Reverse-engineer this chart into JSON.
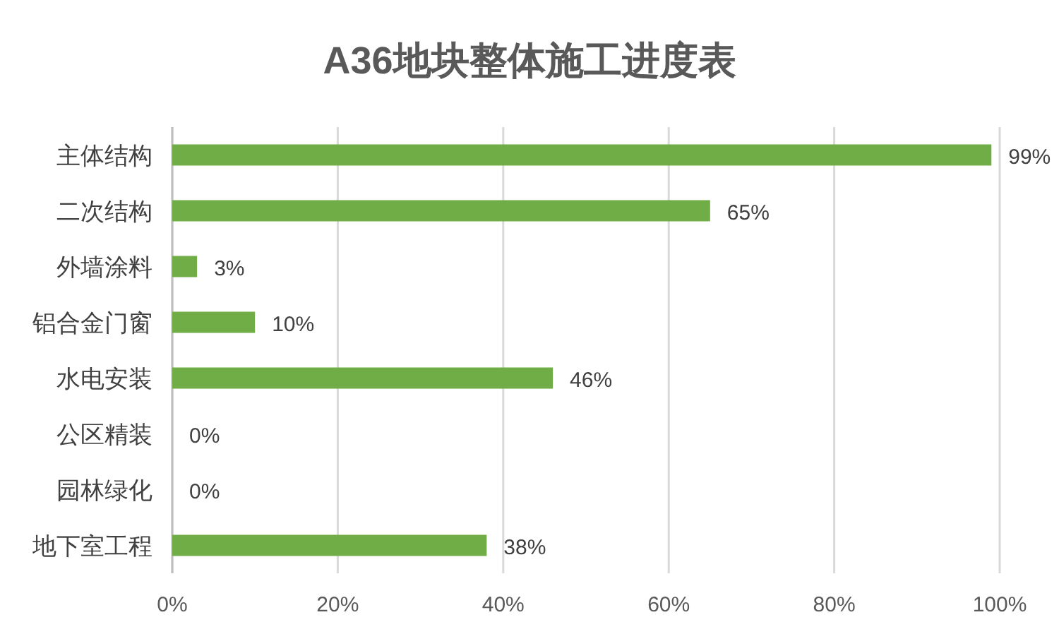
{
  "chart_data": {
    "type": "bar",
    "orientation": "horizontal",
    "title": "A36地块整体施工进度表",
    "categories": [
      "主体结构",
      "二次结构",
      "外墙涂料",
      "铝合金门窗",
      "水电安装",
      "公区精装",
      "园林绿化",
      "地下室工程"
    ],
    "values": [
      99,
      65,
      3,
      10,
      46,
      0,
      0,
      38
    ],
    "value_labels": [
      "99%",
      "65%",
      "3%",
      "10%",
      "46%",
      "0%",
      "0%",
      "38%"
    ],
    "color": "#70ad47",
    "xlim": [
      0,
      100
    ],
    "xticks": [
      {
        "value": 0,
        "label": "0%"
      },
      {
        "value": 20,
        "label": "20%"
      },
      {
        "value": 40,
        "label": "40%"
      },
      {
        "value": 60,
        "label": "60%"
      },
      {
        "value": 80,
        "label": "80%"
      },
      {
        "value": 100,
        "label": "100%"
      }
    ],
    "grid": "x"
  }
}
